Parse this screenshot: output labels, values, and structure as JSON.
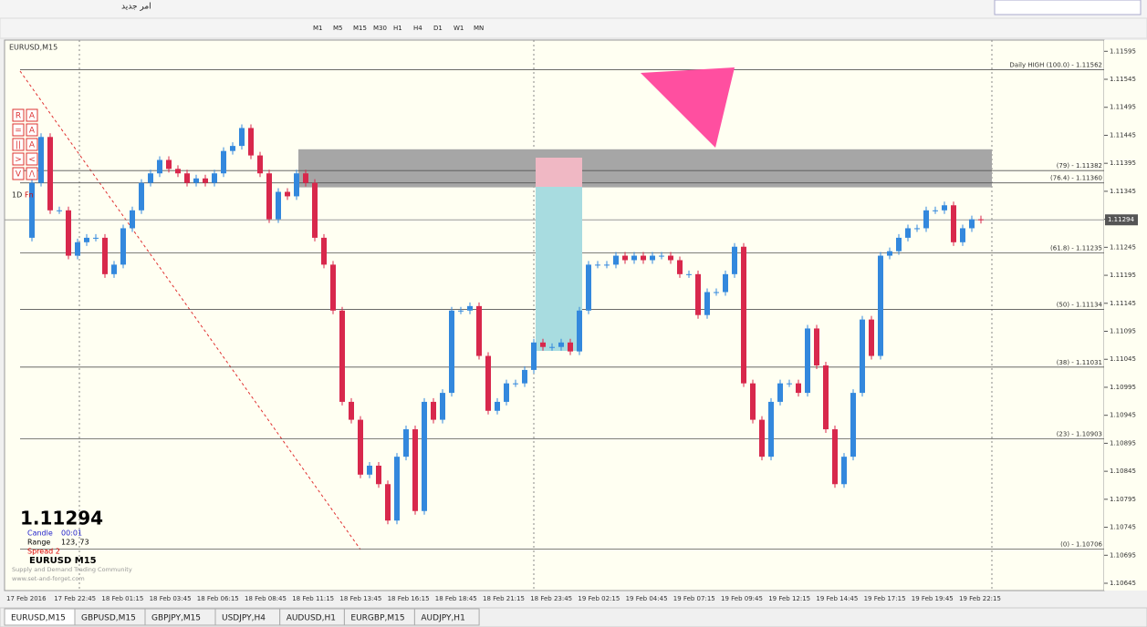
{
  "toolbar": {
    "arabic": "امر جدید",
    "timeframes": [
      "M1",
      "M5",
      "M15",
      "M30",
      "H1",
      "H4",
      "D1",
      "W1",
      "MN"
    ]
  },
  "chart": {
    "symbol": "EURUSD,M15",
    "ylim": [
      1.10632,
      1.11615
    ],
    "yticks": [
      1.11595,
      1.11545,
      1.11495,
      1.11445,
      1.11395,
      1.11345,
      1.11295,
      1.11245,
      1.11195,
      1.11145,
      1.11095,
      1.11045,
      1.10995,
      1.10945,
      1.10895,
      1.10845,
      1.10795,
      1.10745,
      1.10695,
      1.10645
    ],
    "closes": [
      1.11262,
      1.1136,
      1.11442,
      1.11311,
      1.11311,
      1.1123,
      1.11254,
      1.11262,
      1.11262,
      1.11197,
      1.11214,
      1.11279,
      1.11311,
      1.1136,
      1.11377,
      1.11401,
      1.11385,
      1.11377,
      1.1136,
      1.11368,
      1.1136,
      1.11377,
      1.11417,
      1.11426,
      1.11458,
      1.11409,
      1.11377,
      1.11295,
      1.11344,
      1.11336,
      1.11377,
      1.1136,
      1.11262,
      1.11214,
      1.11132,
      1.10969,
      1.10937,
      1.10839,
      1.10855,
      1.10822,
      1.10757,
      1.10871,
      1.1092,
      1.10774,
      1.10969,
      1.10937,
      1.10985,
      1.11132,
      1.11132,
      1.1114,
      1.11051,
      1.10953,
      1.10969,
      1.11002,
      1.11002,
      1.11026,
      1.11075,
      1.11067,
      1.11067,
      1.11075,
      1.11059,
      1.11132,
      1.11214,
      1.11214,
      1.11214,
      1.1123,
      1.11222,
      1.1123,
      1.11222,
      1.1123,
      1.1123,
      1.11222,
      1.11197,
      1.11197,
      1.11124,
      1.11165,
      1.11165,
      1.11197,
      1.11246,
      1.11002,
      1.10937,
      1.10871,
      1.10969,
      1.11002,
      1.11002,
      1.10985,
      1.111,
      1.11034,
      1.1092,
      1.10822,
      1.10871,
      1.10985,
      1.11116,
      1.11051,
      1.1123,
      1.11238,
      1.11262,
      1.11279,
      1.11279,
      1.11311,
      1.11311,
      1.1132,
      1.11254,
      1.11279,
      1.11295,
      1.11294
    ],
    "zone": [
      1.1142,
      1.11352
    ],
    "levels": [
      {
        "label": "Daily HIGH (100.0) - 1.11562",
        "value": 1.11562
      },
      {
        "label": "(79) - 1.11382",
        "value": 1.11382
      },
      {
        "label": "(76.4) - 1.11360",
        "value": 1.1136
      },
      {
        "label": "(61.8) - 1.11235",
        "value": 1.11235
      },
      {
        "label": "(50) - 1.11134",
        "value": 1.11134
      },
      {
        "label": "(38) - 1.11031",
        "value": 1.11031
      },
      {
        "label": "(23) - 1.10903",
        "value": 1.10903
      },
      {
        "label": "(0) - 1.10706",
        "value": 1.10706
      }
    ],
    "current_price": 1.11294,
    "time_labels": [
      "17 Feb 2016",
      "17 Feb 22:45",
      "18 Feb 01:15",
      "18 Feb 03:45",
      "18 Feb 06:15",
      "18 Feb 08:45",
      "18 Feb 11:15",
      "18 Feb 13:45",
      "18 Feb 16:15",
      "18 Feb 18:45",
      "18 Feb 21:15",
      "18 Feb 23:45",
      "19 Feb 02:15",
      "19 Feb 04:45",
      "19 Feb 07:15",
      "19 Feb 09:45",
      "19 Feb 12:15",
      "19 Feb 14:45",
      "19 Feb 17:15",
      "19 Feb 19:45",
      "19 Feb 22:15"
    ],
    "buttons": [
      "R",
      "A",
      "=",
      "A",
      "||",
      "A",
      ">",
      "<",
      "V",
      "/\\",
      "1D",
      "Fn"
    ],
    "info": {
      "price": "1.11294",
      "candle_label": "Candle",
      "candle": "00:01",
      "range_label": "Range",
      "range": "123, 73",
      "spread": "Spread  2",
      "pair": "EURUSD  M15",
      "community": "Supply and Demand Trading Community",
      "site": "www.set-and-forget.com"
    }
  },
  "tabs": [
    "EURUSD,M15",
    "GBPUSD,M15",
    "GBPJPY,M15",
    "USDJPY,H4",
    "AUDUSD,H1",
    "EURGBP,M15",
    "AUDJPY,H1"
  ]
}
